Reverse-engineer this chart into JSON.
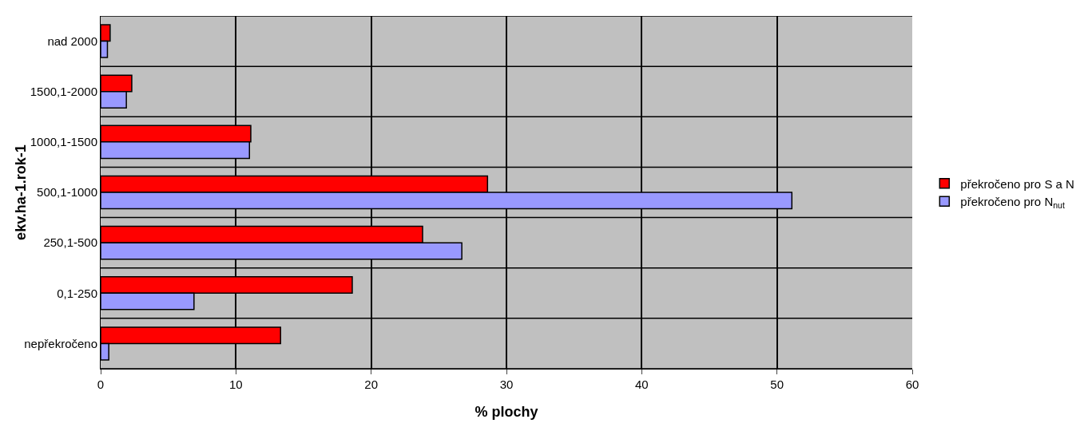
{
  "chart_data": {
    "type": "bar",
    "orientation": "horizontal",
    "categories": [
      "nad 2000",
      "1500,1-2000",
      "1000,1-1500",
      "500,1-1000",
      "250,1-500",
      "0,1-250",
      "nepřekročeno"
    ],
    "series": [
      {
        "name": "překročeno pro S a N",
        "color": "#ff0000",
        "values": [
          0.7,
          2.3,
          11.1,
          28.6,
          23.8,
          18.6,
          13.3
        ]
      },
      {
        "name": "překročeno pro N$_{nut}$",
        "color": "#9999ff",
        "values": [
          0.5,
          1.9,
          11.0,
          51.1,
          26.7,
          6.9,
          0.6
        ]
      }
    ],
    "xlabel": "% plochy",
    "ylabel": "ekv.ha-1.rok-1",
    "xlim": [
      0,
      60
    ],
    "xticks": [
      0,
      10,
      20,
      30,
      40,
      50,
      60
    ],
    "grid": true,
    "legend": "right"
  }
}
